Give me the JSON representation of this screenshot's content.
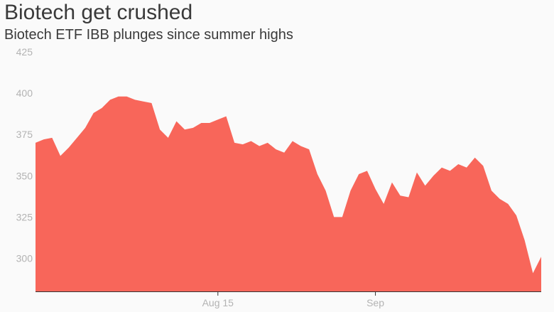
{
  "title": "Biotech get crushed",
  "subtitle": "Biotech ETF IBB plunges since summer highs",
  "colors": {
    "area": "#f8665a",
    "background": "#fafafa",
    "axis": "#333333",
    "grid": "#e6e6e6",
    "tick_text": "#b3b3b3"
  },
  "chart_data": {
    "type": "area",
    "title": "Biotech get crushed",
    "subtitle": "Biotech ETF IBB plunges since summer highs",
    "xlabel": "",
    "ylabel": "",
    "ylim": [
      280,
      425
    ],
    "yticks": [
      300,
      325,
      350,
      375,
      400,
      425
    ],
    "xticks": [
      {
        "label": "Aug 15",
        "index": 22
      },
      {
        "label": "Sep",
        "index": 41
      }
    ],
    "grid": false,
    "series": [
      {
        "values": [
          370,
          372,
          373,
          362,
          367,
          373,
          379,
          388,
          391,
          396,
          398,
          398,
          396,
          395,
          394,
          378,
          373,
          383,
          378,
          379,
          382,
          382,
          384,
          386,
          370,
          369,
          371,
          368,
          370,
          366,
          364,
          371,
          368,
          366,
          351,
          341,
          325,
          325,
          341,
          351,
          353,
          342,
          333,
          346,
          338,
          337,
          352,
          344,
          350,
          355,
          353,
          357,
          355,
          361,
          356,
          341,
          336,
          333,
          326,
          311,
          291,
          301
        ]
      }
    ]
  }
}
